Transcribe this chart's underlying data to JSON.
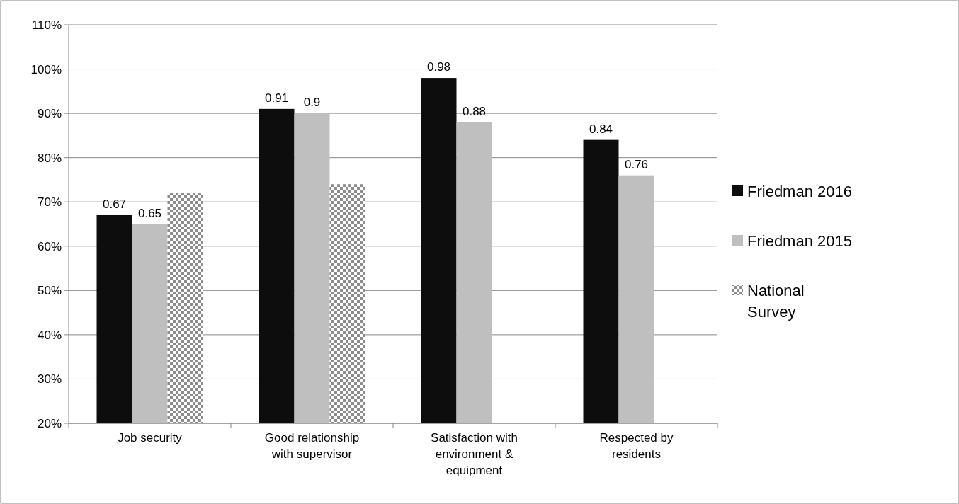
{
  "chart_data": {
    "type": "bar",
    "categories": [
      "Job security",
      "Good relationship with supervisor",
      "Satisfaction with environment & equipment",
      "Respected by residents"
    ],
    "series": [
      {
        "name": "Friedman 2016",
        "color": "#0d0d0d",
        "values": [
          0.67,
          0.91,
          0.98,
          0.84
        ],
        "value_labels": [
          "0.67",
          "0.91",
          "0.98",
          "0.84"
        ]
      },
      {
        "name": "Friedman 2015",
        "color": "#bfbfbf",
        "values": [
          0.65,
          0.9,
          0.88,
          0.76
        ],
        "value_labels": [
          "0.65",
          "0.9",
          "0.88",
          "0.76"
        ]
      },
      {
        "name": "National Survey",
        "color": "#8c8c8c",
        "values": [
          0.72,
          0.74,
          null,
          null
        ]
      }
    ],
    "ylim": [
      0.2,
      1.1
    ],
    "yticks": [
      {
        "value": 0.2,
        "label": "20%"
      },
      {
        "value": 0.3,
        "label": "30%"
      },
      {
        "value": 0.4,
        "label": "40%"
      },
      {
        "value": 0.5,
        "label": "50%"
      },
      {
        "value": 0.6,
        "label": "60%"
      },
      {
        "value": 0.7,
        "label": "70%"
      },
      {
        "value": 0.8,
        "label": "80%"
      },
      {
        "value": 0.9,
        "label": "90%"
      },
      {
        "value": 1.0,
        "label": "100%"
      },
      {
        "value": 1.1,
        "label": "110%"
      }
    ],
    "grid": "y",
    "legend": "right"
  }
}
